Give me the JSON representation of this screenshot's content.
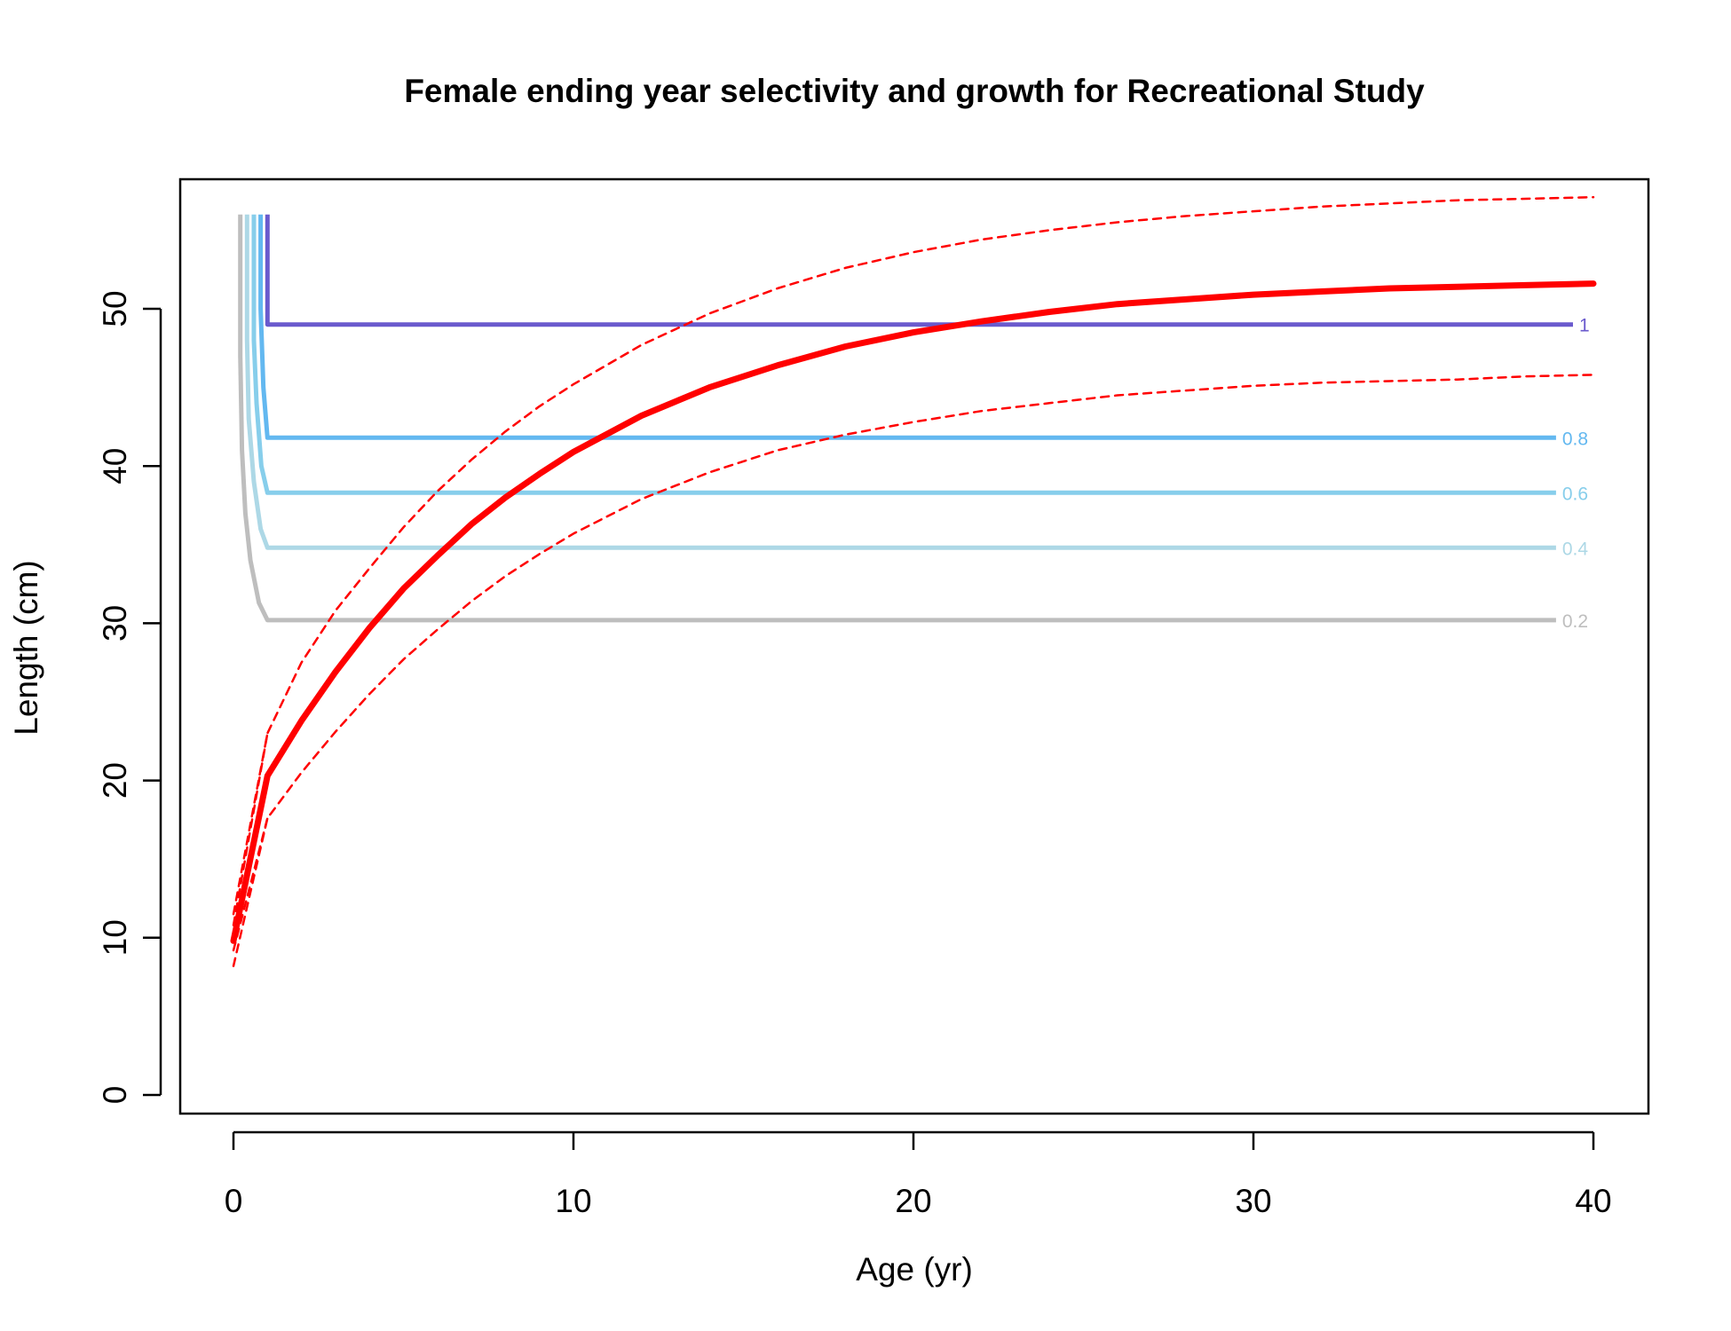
{
  "chart_data": {
    "type": "line",
    "title": "Female ending year selectivity and growth for Recreational Study",
    "xlabel": "Age (yr)",
    "ylabel": "Length (cm)",
    "xlim": [
      0,
      40
    ],
    "ylim": [
      0,
      56
    ],
    "x_ticks": [
      "0",
      "10",
      "20",
      "30",
      "40"
    ],
    "y_ticks": [
      "0",
      "10",
      "20",
      "30",
      "40",
      "50"
    ],
    "grid": false,
    "selectivity_contours": [
      {
        "label": "0.2",
        "color": "#bebebe",
        "plateau": 30.2,
        "spine_x": 0.2,
        "curve": [
          [
            0.2,
            56
          ],
          [
            0.2,
            47
          ],
          [
            0.25,
            41
          ],
          [
            0.35,
            37
          ],
          [
            0.5,
            34
          ],
          [
            0.75,
            31.3
          ],
          [
            1.0,
            30.2
          ],
          [
            38.9,
            30.2
          ]
        ]
      },
      {
        "label": "0.4",
        "color": "#add8e6",
        "plateau": 34.8,
        "spine_x": 0.4,
        "curve": [
          [
            0.4,
            56
          ],
          [
            0.4,
            48
          ],
          [
            0.45,
            43
          ],
          [
            0.6,
            39
          ],
          [
            0.8,
            36
          ],
          [
            1.0,
            34.8
          ],
          [
            38.9,
            34.8
          ]
        ]
      },
      {
        "label": "0.6",
        "color": "#87ceeb",
        "plateau": 38.3,
        "spine_x": 0.6,
        "curve": [
          [
            0.6,
            56
          ],
          [
            0.6,
            48
          ],
          [
            0.68,
            44
          ],
          [
            0.82,
            40
          ],
          [
            1.0,
            38.3
          ],
          [
            38.9,
            38.3
          ]
        ]
      },
      {
        "label": "0.8",
        "color": "#63b8f0",
        "plateau": 41.8,
        "spine_x": 0.8,
        "curve": [
          [
            0.8,
            56
          ],
          [
            0.8,
            50
          ],
          [
            0.88,
            45
          ],
          [
            1.0,
            41.8
          ],
          [
            38.9,
            41.8
          ]
        ]
      },
      {
        "label": "1",
        "color": "#6a5acd",
        "plateau": 49.0,
        "spine_x": 1.0,
        "curve": [
          [
            1.0,
            56
          ],
          [
            1.0,
            49.0
          ],
          [
            39.4,
            49.0
          ]
        ]
      }
    ],
    "series": [
      {
        "style": "solid",
        "color": "#ff0000",
        "x": [
          0,
          1,
          2,
          3,
          4,
          5,
          6,
          7,
          8,
          9,
          10,
          12,
          14,
          16,
          18,
          20,
          22,
          24,
          26,
          28,
          30,
          32,
          34,
          36,
          38,
          40
        ],
        "y": [
          9.8,
          20.3,
          23.8,
          26.9,
          29.7,
          32.2,
          34.3,
          36.3,
          38.0,
          39.5,
          40.9,
          43.2,
          45.0,
          46.4,
          47.6,
          48.5,
          49.2,
          49.8,
          50.3,
          50.6,
          50.9,
          51.1,
          51.3,
          51.4,
          51.5,
          51.6
        ]
      },
      {
        "style": "dashed",
        "color": "#ff0000",
        "x": [
          0,
          1,
          2,
          3,
          4,
          5,
          6,
          7,
          8,
          9,
          10,
          12,
          14,
          16,
          18,
          20,
          22,
          24,
          26,
          28,
          30,
          32,
          34,
          36,
          38,
          40
        ],
        "y": [
          11.5,
          23.0,
          27.5,
          30.8,
          33.5,
          36.1,
          38.4,
          40.4,
          42.2,
          43.8,
          45.2,
          47.7,
          49.7,
          51.3,
          52.6,
          53.6,
          54.4,
          55.0,
          55.5,
          55.9,
          56.2,
          56.5,
          56.7,
          56.9,
          57.0,
          57.1
        ]
      },
      {
        "style": "dashed",
        "color": "#ff0000",
        "x": [
          0,
          1,
          2,
          3,
          4,
          5,
          6,
          7,
          8,
          9,
          10,
          12,
          14,
          16,
          18,
          20,
          22,
          24,
          26,
          28,
          30,
          32,
          34,
          36,
          38,
          40
        ],
        "y": [
          8.2,
          17.6,
          20.5,
          23.1,
          25.5,
          27.7,
          29.6,
          31.4,
          33.0,
          34.4,
          35.7,
          37.9,
          39.6,
          41.0,
          42.0,
          42.8,
          43.5,
          44.0,
          44.5,
          44.8,
          45.1,
          45.3,
          45.4,
          45.5,
          45.7,
          45.8
        ]
      },
      {
        "style": "dashed",
        "color": "#ff0000",
        "x": [
          0,
          1
        ],
        "y": [
          10.8,
          23.0
        ]
      },
      {
        "style": "dashed",
        "color": "#ff0000",
        "x": [
          0,
          1
        ],
        "y": [
          9.2,
          17.6
        ]
      }
    ]
  }
}
